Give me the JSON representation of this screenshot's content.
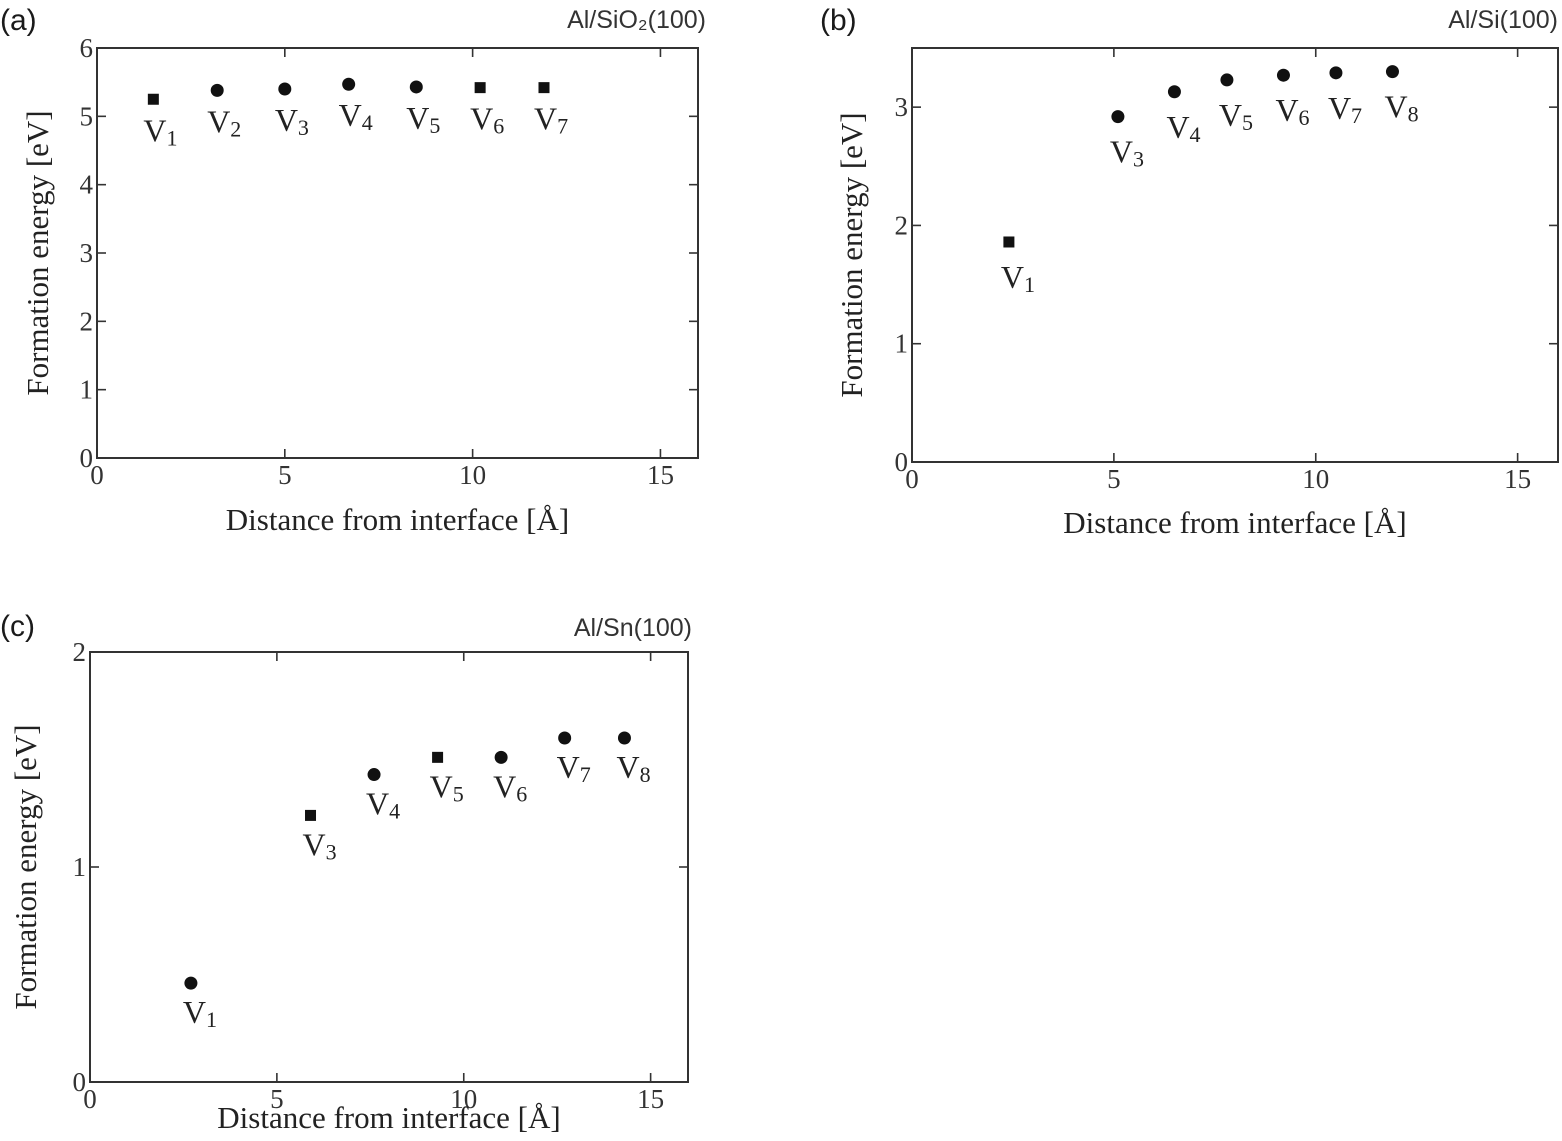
{
  "figure": {
    "panels": [
      "a",
      "b",
      "c"
    ]
  },
  "chart_data": [
    {
      "type": "scatter",
      "panel": "(a)",
      "title": "Al/SiO₂(100)",
      "xlabel": "Distance from interface [Å]",
      "ylabel": "Formation energy [eV]",
      "xlim": [
        0,
        16
      ],
      "ylim": [
        0,
        6
      ],
      "xticks": [
        0,
        5,
        10,
        15
      ],
      "yticks": [
        0,
        1,
        2,
        3,
        4,
        5,
        6
      ],
      "grid": false,
      "points": [
        {
          "label": "V",
          "sub": "1",
          "x": 1.5,
          "y": 5.25,
          "marker": "square"
        },
        {
          "label": "V",
          "sub": "2",
          "x": 3.2,
          "y": 5.38,
          "marker": "circle"
        },
        {
          "label": "V",
          "sub": "3",
          "x": 5.0,
          "y": 5.4,
          "marker": "circle"
        },
        {
          "label": "V",
          "sub": "4",
          "x": 6.7,
          "y": 5.47,
          "marker": "circle"
        },
        {
          "label": "V",
          "sub": "5",
          "x": 8.5,
          "y": 5.43,
          "marker": "circle"
        },
        {
          "label": "V",
          "sub": "6",
          "x": 10.2,
          "y": 5.42,
          "marker": "square"
        },
        {
          "label": "V",
          "sub": "7",
          "x": 11.9,
          "y": 5.42,
          "marker": "square"
        }
      ]
    },
    {
      "type": "scatter",
      "panel": "(b)",
      "title": "Al/Si(100)",
      "xlabel": "Distance from interface [Å]",
      "ylabel": "Formation energy [eV]",
      "xlim": [
        0,
        16
      ],
      "ylim": [
        0,
        3.5
      ],
      "xticks": [
        0,
        5,
        10,
        15
      ],
      "yticks": [
        0,
        1,
        2,
        3
      ],
      "grid": false,
      "points": [
        {
          "label": "V",
          "sub": "1",
          "x": 2.4,
          "y": 1.86,
          "marker": "square"
        },
        {
          "label": "V",
          "sub": "3",
          "x": 5.1,
          "y": 2.92,
          "marker": "circle"
        },
        {
          "label": "V",
          "sub": "4",
          "x": 6.5,
          "y": 3.13,
          "marker": "circle"
        },
        {
          "label": "V",
          "sub": "5",
          "x": 7.8,
          "y": 3.23,
          "marker": "circle"
        },
        {
          "label": "V",
          "sub": "6",
          "x": 9.2,
          "y": 3.27,
          "marker": "circle"
        },
        {
          "label": "V",
          "sub": "7",
          "x": 10.5,
          "y": 3.29,
          "marker": "circle"
        },
        {
          "label": "V",
          "sub": "8",
          "x": 11.9,
          "y": 3.3,
          "marker": "circle"
        }
      ]
    },
    {
      "type": "scatter",
      "panel": "(c)",
      "title": "Al/Sn(100)",
      "xlabel": "Distance from interface [Å]",
      "ylabel": "Formation energy [eV]",
      "xlim": [
        0,
        16
      ],
      "ylim": [
        0,
        2
      ],
      "xticks": [
        0,
        5,
        10,
        15
      ],
      "yticks": [
        0,
        1,
        2
      ],
      "grid": false,
      "points": [
        {
          "label": "V",
          "sub": "1",
          "x": 2.7,
          "y": 0.46,
          "marker": "circle"
        },
        {
          "label": "V",
          "sub": "3",
          "x": 5.9,
          "y": 1.24,
          "marker": "square"
        },
        {
          "label": "V",
          "sub": "4",
          "x": 7.6,
          "y": 1.43,
          "marker": "circle"
        },
        {
          "label": "V",
          "sub": "5",
          "x": 9.3,
          "y": 1.51,
          "marker": "square"
        },
        {
          "label": "V",
          "sub": "6",
          "x": 11.0,
          "y": 1.51,
          "marker": "circle"
        },
        {
          "label": "V",
          "sub": "7",
          "x": 12.7,
          "y": 1.6,
          "marker": "circle"
        },
        {
          "label": "V",
          "sub": "8",
          "x": 14.3,
          "y": 1.6,
          "marker": "circle"
        }
      ]
    }
  ]
}
